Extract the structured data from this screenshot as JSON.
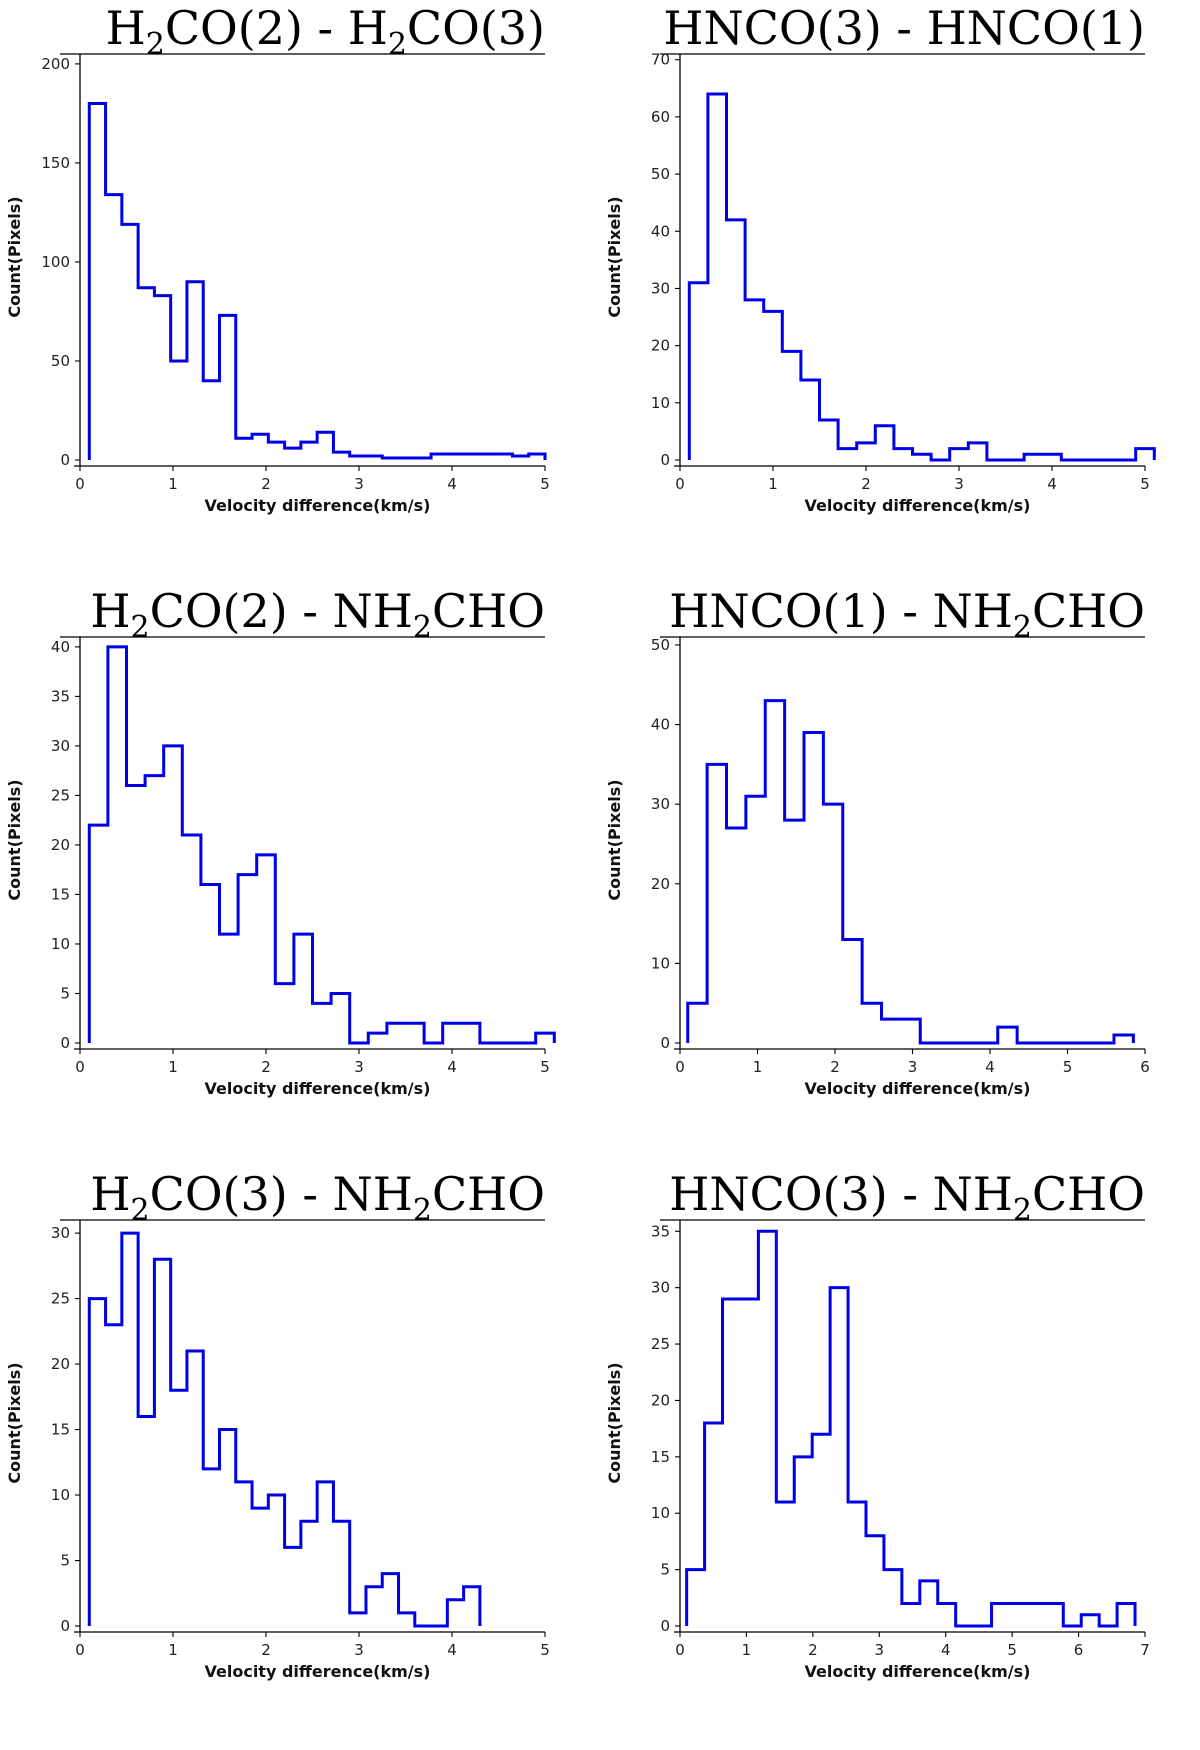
{
  "chart_data": [
    {
      "type": "step-histogram",
      "title": {
        "pre": "H",
        "sub1": "2",
        "mid": "CO(2) - H",
        "sub2": "2",
        "post": "CO(3)"
      },
      "xlabel": "Velocity difference(km/s)",
      "ylabel": "Count(Pixels)",
      "xlim": [
        0,
        5
      ],
      "ylim": [
        0,
        205
      ],
      "xticks": [
        0,
        1,
        2,
        3,
        4,
        5
      ],
      "yticks": [
        0,
        50,
        100,
        150,
        200
      ],
      "bin_start": 0.1,
      "bin_width": 0.175,
      "counts": [
        180,
        134,
        119,
        87,
        83,
        50,
        90,
        40,
        73,
        11,
        13,
        9,
        6,
        9,
        14,
        4,
        2,
        2,
        1,
        1,
        1,
        3,
        3,
        3,
        3,
        3,
        2,
        3
      ]
    },
    {
      "type": "step-histogram",
      "title": {
        "pre": "HNCO(3) - HNCO(1)"
      },
      "xlabel": "Velocity difference(km/s)",
      "ylabel": "Count(Pixels)",
      "xlim": [
        0,
        5
      ],
      "ylim": [
        0,
        71
      ],
      "xticks": [
        0,
        1,
        2,
        3,
        4,
        5
      ],
      "yticks": [
        0,
        10,
        20,
        30,
        40,
        50,
        60,
        70
      ],
      "bin_start": 0.1,
      "bin_width": 0.2,
      "counts": [
        31,
        64,
        42,
        28,
        26,
        19,
        14,
        7,
        2,
        3,
        6,
        2,
        1,
        0,
        2,
        3,
        0,
        0,
        1,
        1,
        0,
        0,
        0,
        0,
        2
      ]
    },
    {
      "type": "step-histogram",
      "title": {
        "pre": "H",
        "sub1": "2",
        "mid": "CO(2) - NH",
        "sub2": "2",
        "post": "CHO"
      },
      "xlabel": "Velocity difference(km/s)",
      "ylabel": "Count(Pixels)",
      "xlim": [
        0,
        5
      ],
      "ylim": [
        0,
        41
      ],
      "xticks": [
        0,
        1,
        2,
        3,
        4,
        5
      ],
      "yticks": [
        0,
        5,
        10,
        15,
        20,
        25,
        30,
        35,
        40
      ],
      "bin_start": 0.1,
      "bin_width": 0.2,
      "counts": [
        22,
        40,
        26,
        27,
        30,
        21,
        16,
        11,
        17,
        19,
        6,
        11,
        4,
        5,
        0,
        1,
        2,
        2,
        0,
        2,
        2,
        0,
        0,
        0,
        1
      ]
    },
    {
      "type": "step-histogram",
      "title": {
        "pre": "HNCO(1) - NH",
        "sub1": "2",
        "mid": "CHO"
      },
      "xlabel": "Velocity difference(km/s)",
      "ylabel": "Count(Pixels)",
      "xlim": [
        0,
        6
      ],
      "ylim": [
        0,
        51
      ],
      "xticks": [
        0,
        1,
        2,
        3,
        4,
        5,
        6
      ],
      "yticks": [
        0,
        10,
        20,
        30,
        40,
        50
      ],
      "bin_start": 0.1,
      "bin_width": 0.25,
      "counts": [
        5,
        35,
        27,
        31,
        43,
        28,
        39,
        30,
        13,
        5,
        3,
        3,
        0,
        0,
        0,
        0,
        2,
        0,
        0,
        0,
        0,
        0,
        1
      ]
    },
    {
      "type": "step-histogram",
      "title": {
        "pre": "H",
        "sub1": "2",
        "mid": "CO(3) - NH",
        "sub2": "2",
        "post": "CHO"
      },
      "xlabel": "Velocity difference(km/s)",
      "ylabel": "Count(Pixels)",
      "xlim": [
        0,
        5
      ],
      "ylim": [
        0,
        31
      ],
      "xticks": [
        0,
        1,
        2,
        3,
        4,
        5
      ],
      "yticks": [
        0,
        5,
        10,
        15,
        20,
        25,
        30
      ],
      "bin_start": 0.1,
      "bin_width": 0.175,
      "counts": [
        25,
        23,
        30,
        16,
        28,
        18,
        21,
        12,
        15,
        11,
        9,
        10,
        6,
        8,
        11,
        8,
        1,
        3,
        4,
        1,
        0,
        0,
        2,
        3
      ]
    },
    {
      "type": "step-histogram",
      "title": {
        "pre": "HNCO(3) - NH",
        "sub1": "2",
        "mid": "CHO"
      },
      "xlabel": "Velocity difference(km/s)",
      "ylabel": "Count(Pixels)",
      "xlim": [
        0,
        7
      ],
      "ylim": [
        0,
        36
      ],
      "xticks": [
        0,
        1,
        2,
        3,
        4,
        5,
        6,
        7
      ],
      "yticks": [
        0,
        5,
        10,
        15,
        20,
        25,
        30,
        35
      ],
      "bin_start": 0.1,
      "bin_width": 0.27,
      "counts": [
        5,
        18,
        29,
        29,
        35,
        11,
        15,
        17,
        30,
        11,
        8,
        5,
        2,
        4,
        2,
        0,
        0,
        2,
        2,
        2,
        2,
        0,
        1,
        0,
        2
      ]
    }
  ]
}
